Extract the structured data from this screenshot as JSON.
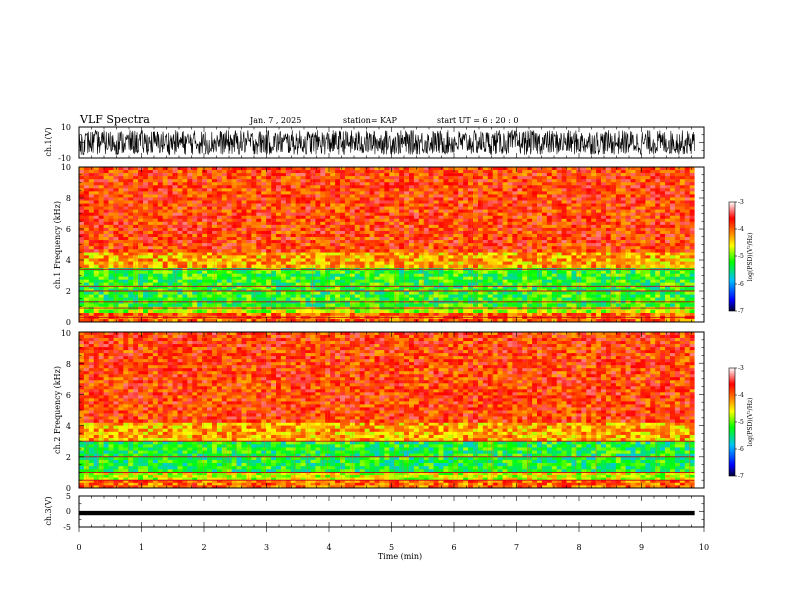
{
  "header": {
    "title": "VLF Spectra",
    "date": "Jan. 7 , 2025",
    "station": "station= KAP",
    "start": "start UT =  6 : 20 : 0"
  },
  "chart_data": [
    {
      "type": "line",
      "panel": "waveform-ch1",
      "ylabel": "ch.1(V)",
      "ylim": [
        -10,
        10
      ],
      "yticks": [
        "10",
        "-10"
      ],
      "description_values": {
        "typical_amplitude_range": [
          -8,
          8
        ]
      }
    },
    {
      "type": "heatmap",
      "panel": "spectrogram-ch1",
      "ylabel": "ch.1 Frequency (kHz)",
      "ylim": [
        0,
        10
      ],
      "yticks": [
        "0",
        "2",
        "4",
        "6",
        "8",
        "10"
      ],
      "colorbar": {
        "label": "log(PSD)(V²/Hz)",
        "ticks": [
          "-3",
          "-4",
          "-5",
          "-6",
          "-7"
        ],
        "range": [
          -7,
          -3
        ]
      },
      "band_profile": [
        {
          "freq_khz": [
            0,
            0.6
          ],
          "log_psd": -4.0
        },
        {
          "freq_khz": [
            0.6,
            1.0
          ],
          "log_psd": -4.8
        },
        {
          "freq_khz": [
            1.0,
            3.5
          ],
          "log_psd": -5.2
        },
        {
          "freq_khz": [
            3.5,
            4.5
          ],
          "log_psd": -4.3
        },
        {
          "freq_khz": [
            4.5,
            10
          ],
          "log_psd": -3.8
        }
      ],
      "line_freqs_khz": [
        2.3,
        2.0,
        3.4,
        1.3,
        0.9,
        0.3
      ]
    },
    {
      "type": "heatmap",
      "panel": "spectrogram-ch2",
      "ylabel": "ch.2 Frequency (kHz)",
      "ylim": [
        0,
        10
      ],
      "yticks": [
        "0",
        "2",
        "4",
        "6",
        "8",
        "10"
      ],
      "colorbar": {
        "label": "log(PSD)(V²/Hz)",
        "ticks": [
          "-3",
          "-4",
          "-5",
          "-6",
          "-7"
        ],
        "range": [
          -7,
          -3
        ]
      },
      "band_profile": [
        {
          "freq_khz": [
            0,
            0.5
          ],
          "log_psd": -4.0
        },
        {
          "freq_khz": [
            0.5,
            1.0
          ],
          "log_psd": -4.7
        },
        {
          "freq_khz": [
            1.0,
            3.0
          ],
          "log_psd": -5.3
        },
        {
          "freq_khz": [
            3.0,
            4.2
          ],
          "log_psd": -4.3
        },
        {
          "freq_khz": [
            4.2,
            10
          ],
          "log_psd": -3.8
        }
      ],
      "line_freqs_khz": [
        2.0,
        3.0,
        1.0,
        0.5
      ]
    },
    {
      "type": "line",
      "panel": "waveform-ch3",
      "ylabel": "ch.3(V)",
      "ylim": [
        -5,
        5
      ],
      "yticks": [
        "5",
        "0",
        "-5"
      ],
      "description_values": {
        "level": -0.5,
        "band_halfwidth": 0.7
      }
    }
  ],
  "xaxis": {
    "label": "Time (min)",
    "range": [
      0,
      10
    ],
    "ticks": [
      "0",
      "1",
      "2",
      "3",
      "4",
      "5",
      "6",
      "7",
      "8",
      "9",
      "10"
    ],
    "data_end_min": 9.85
  },
  "colors": {
    "colormap": [
      "#000033",
      "#0000ff",
      "#00bfff",
      "#00ff00",
      "#ffff00",
      "#ff7f00",
      "#ff0000",
      "#ffffff"
    ]
  }
}
